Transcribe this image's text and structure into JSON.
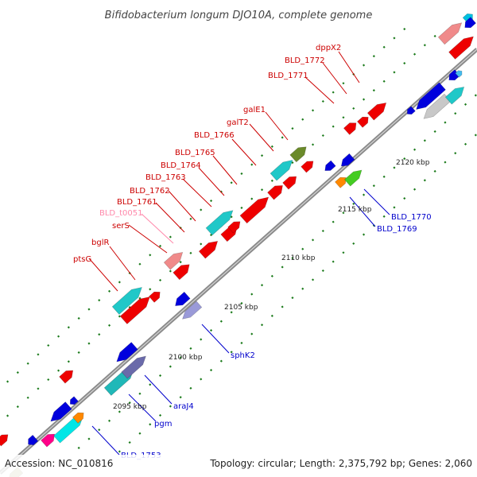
{
  "title": "Bifidobacterium longum DJO10A, complete genome",
  "footer": {
    "accession": "Accession: NC_010816",
    "summary": "Topology: circular; Length: 2,375,792 bp; Genes: 2,060"
  },
  "colors": {
    "backbone": "#808080",
    "tick": "#1a7a1a",
    "forward_label": "#cc0000",
    "reverse_label": "#0000cc",
    "pseudo_label": "#ff88aa"
  },
  "ticks": [
    {
      "label": "2095 kbp"
    },
    {
      "label": "2100 kbp"
    },
    {
      "label": "2105 kbp"
    },
    {
      "label": "2110 kbp"
    },
    {
      "label": "2115 kbp"
    },
    {
      "label": "2120 kbp"
    }
  ],
  "labels": [
    {
      "text": "ptsG",
      "color": "#cc0000"
    },
    {
      "text": "bglR",
      "color": "#cc0000"
    },
    {
      "text": "serS",
      "color": "#cc0000"
    },
    {
      "text": "BLD_t0051",
      "color": "#ff88aa"
    },
    {
      "text": "BLD_1761",
      "color": "#cc0000"
    },
    {
      "text": "BLD_1762",
      "color": "#cc0000"
    },
    {
      "text": "BLD_1763",
      "color": "#cc0000"
    },
    {
      "text": "BLD_1764",
      "color": "#cc0000"
    },
    {
      "text": "BLD_1765",
      "color": "#cc0000"
    },
    {
      "text": "BLD_1766",
      "color": "#cc0000"
    },
    {
      "text": "galT2",
      "color": "#cc0000"
    },
    {
      "text": "galE1",
      "color": "#cc0000"
    },
    {
      "text": "BLD_1771",
      "color": "#cc0000"
    },
    {
      "text": "BLD_1772",
      "color": "#cc0000"
    },
    {
      "text": "dppX2",
      "color": "#cc0000"
    },
    {
      "text": "BLD_1770",
      "color": "#0000cc"
    },
    {
      "text": "BLD_1769",
      "color": "#0000cc"
    },
    {
      "text": "sphK2",
      "color": "#0000cc"
    },
    {
      "text": "araJ4",
      "color": "#0000cc"
    },
    {
      "text": "pgm",
      "color": "#0000cc"
    },
    {
      "text": "BLD_1753",
      "color": "#0000cc"
    }
  ]
}
